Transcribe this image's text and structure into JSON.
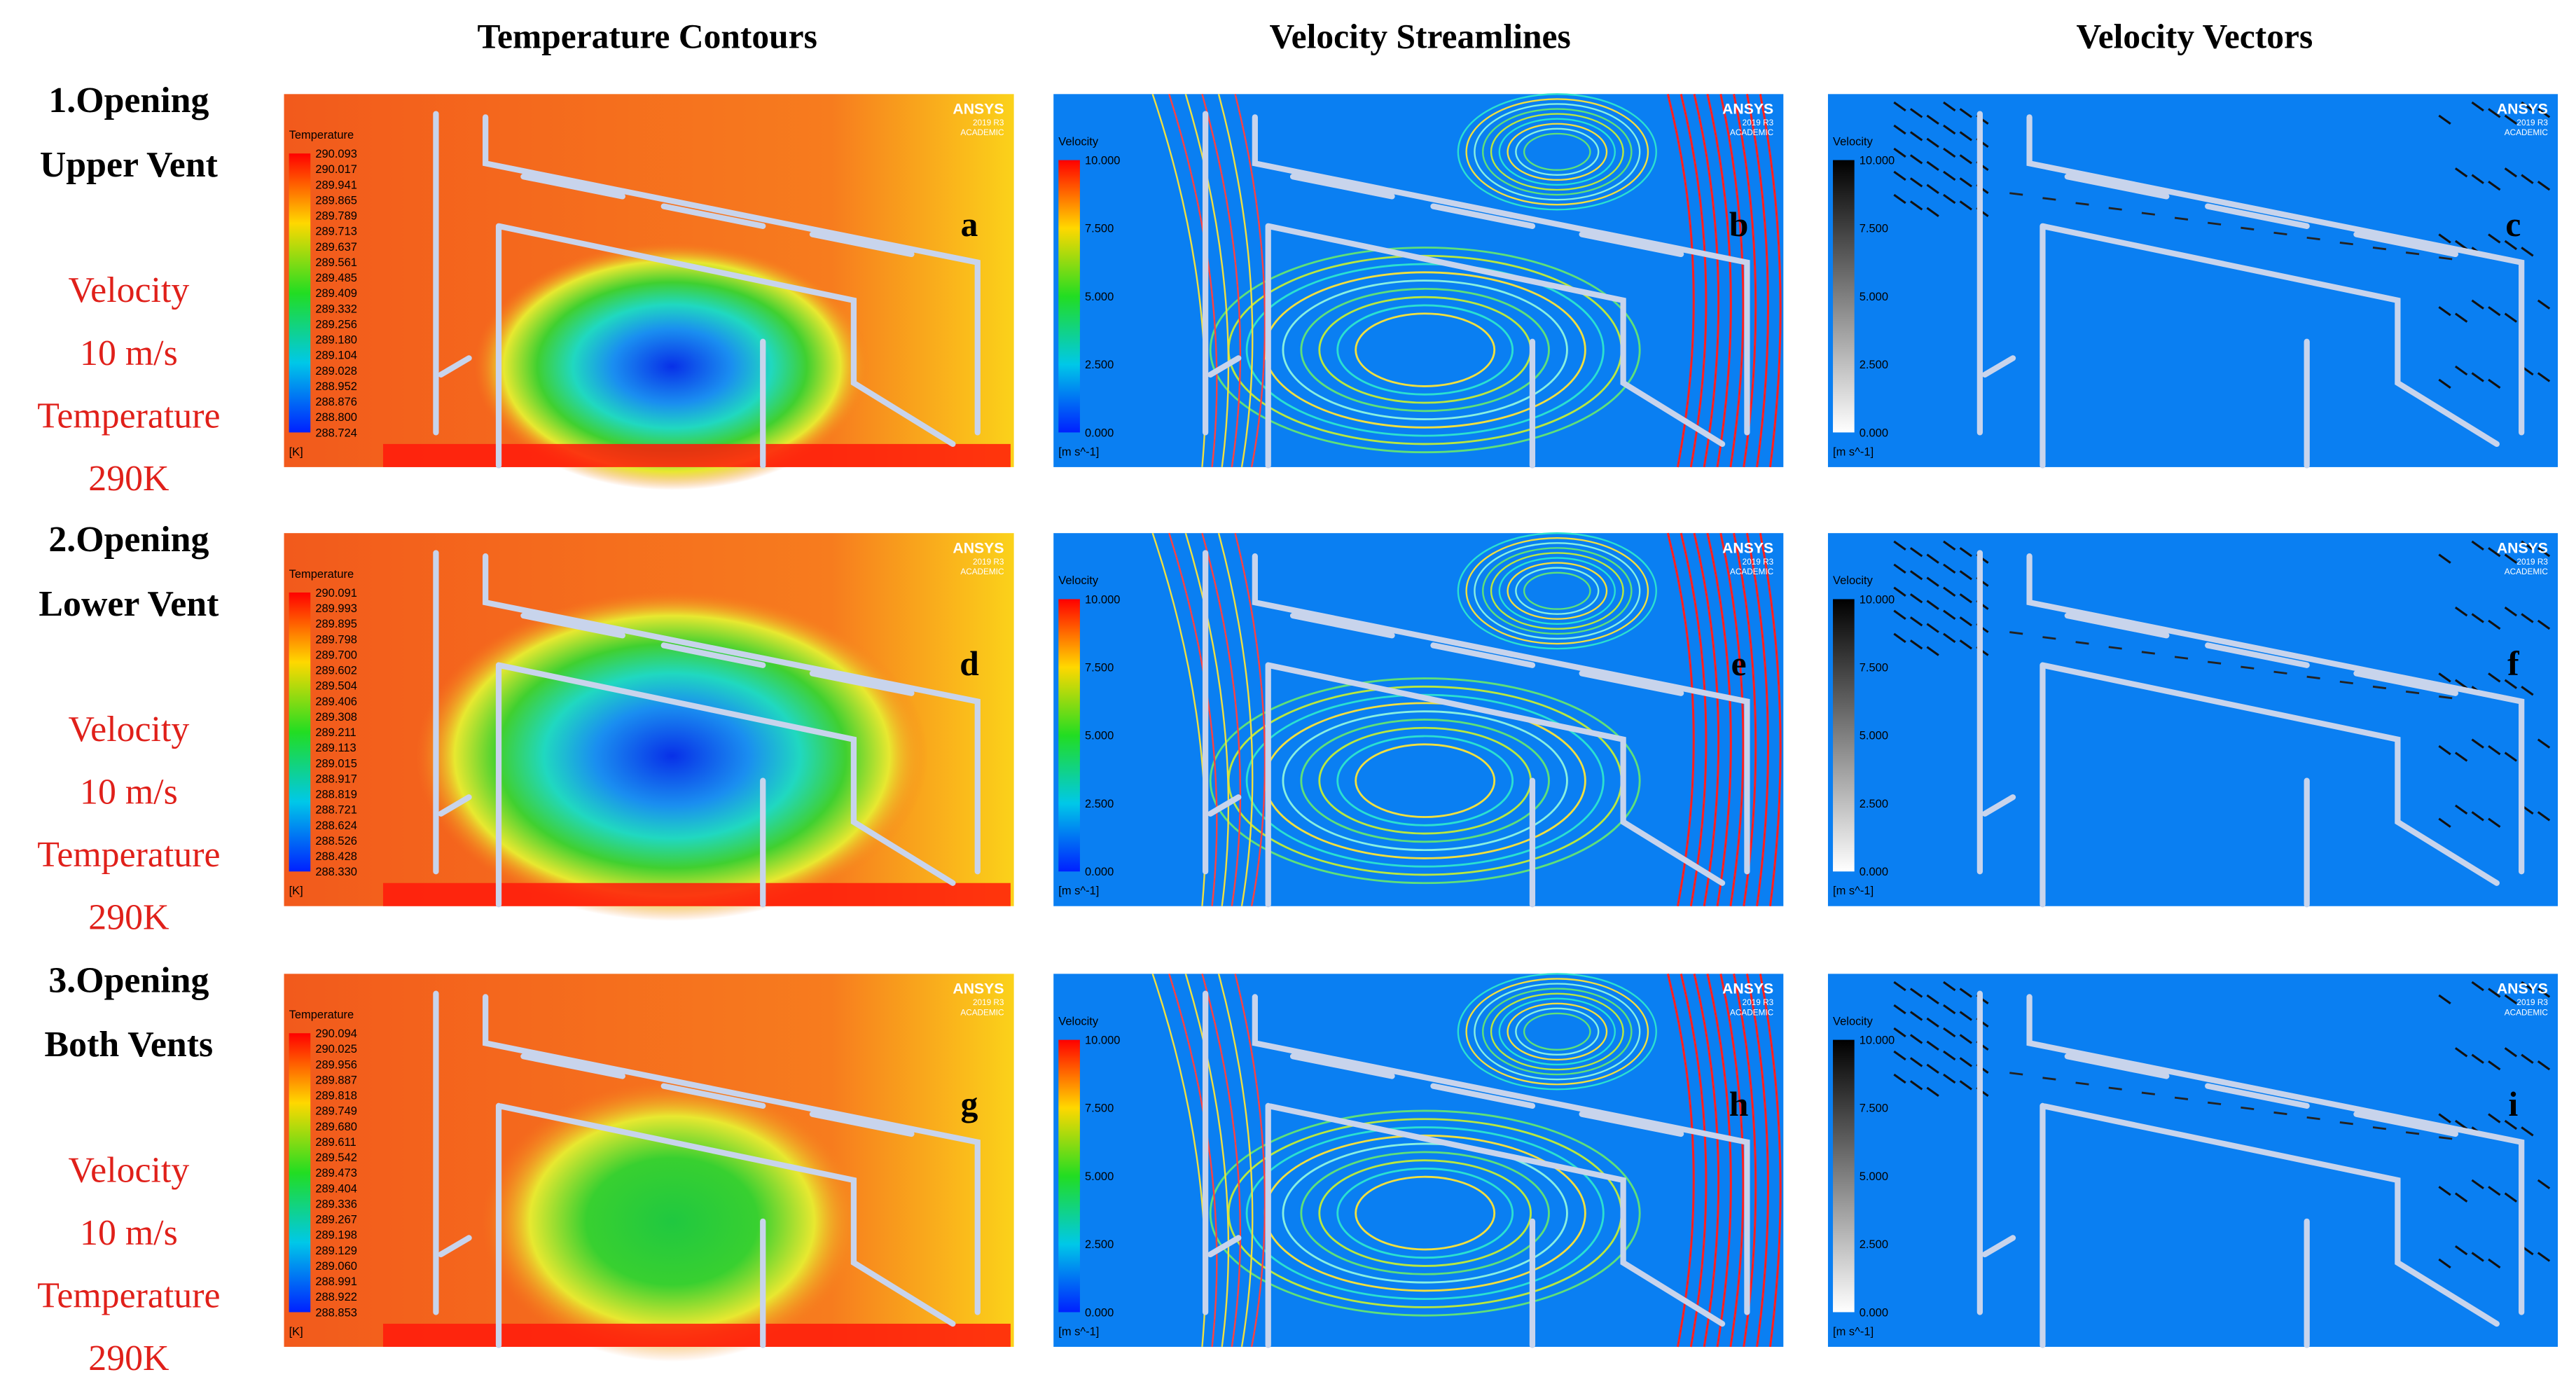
{
  "columns": [
    "Temperature Contours",
    "Velocity Streamlines",
    "Velocity Vectors"
  ],
  "branding": {
    "name": "ANSYS",
    "version": "2019 R3",
    "edition": "ACADEMIC"
  },
  "rows": [
    {
      "title_line1": "1.Opening",
      "title_line2": "Upper Vent",
      "velocity_label": "Velocity",
      "velocity_value": "10 m/s",
      "temperature_label": "Temperature",
      "temperature_value": "290K",
      "panels": [
        {
          "letter": "a",
          "legend_title": "Temperature",
          "legend_ticks": [
            "290.093",
            "290.017",
            "289.941",
            "289.865",
            "289.789",
            "289.713",
            "289.637",
            "289.561",
            "289.485",
            "289.409",
            "289.332",
            "289.256",
            "289.180",
            "289.104",
            "289.028",
            "288.952",
            "288.876",
            "288.800",
            "288.724"
          ],
          "unit": "[K]"
        },
        {
          "letter": "b",
          "legend_title": "Velocity",
          "legend_ticks": [
            "10.000",
            "7.500",
            "5.000",
            "2.500",
            "0.000"
          ],
          "unit": "[m s^-1]"
        },
        {
          "letter": "c",
          "legend_title": "Velocity",
          "legend_ticks": [
            "10.000",
            "7.500",
            "5.000",
            "2.500",
            "0.000"
          ],
          "unit": "[m s^-1]"
        }
      ]
    },
    {
      "title_line1": "2.Opening",
      "title_line2": "Lower Vent",
      "velocity_label": "Velocity",
      "velocity_value": "10 m/s",
      "temperature_label": "Temperature",
      "temperature_value": "290K",
      "panels": [
        {
          "letter": "d",
          "legend_title": "Temperature",
          "legend_ticks": [
            "290.091",
            "289.993",
            "289.895",
            "289.798",
            "289.700",
            "289.602",
            "289.504",
            "289.406",
            "289.308",
            "289.211",
            "289.113",
            "289.015",
            "288.917",
            "288.819",
            "288.721",
            "288.624",
            "288.526",
            "288.428",
            "288.330"
          ],
          "unit": "[K]"
        },
        {
          "letter": "e",
          "legend_title": "Velocity",
          "legend_ticks": [
            "10.000",
            "7.500",
            "5.000",
            "2.500",
            "0.000"
          ],
          "unit": "[m s^-1]"
        },
        {
          "letter": "f",
          "legend_title": "Velocity",
          "legend_ticks": [
            "10.000",
            "7.500",
            "5.000",
            "2.500",
            "0.000"
          ],
          "unit": "[m s^-1]"
        }
      ]
    },
    {
      "title_line1": "3.Opening",
      "title_line2": "Both Vents",
      "velocity_label": "Velocity",
      "velocity_value": "10 m/s",
      "temperature_label": "Temperature",
      "temperature_value": "290K",
      "panels": [
        {
          "letter": "g",
          "legend_title": "Temperature",
          "legend_ticks": [
            "290.094",
            "290.025",
            "289.956",
            "289.887",
            "289.818",
            "289.749",
            "289.680",
            "289.611",
            "289.542",
            "289.473",
            "289.404",
            "289.336",
            "289.267",
            "289.198",
            "289.129",
            "289.060",
            "288.991",
            "288.922",
            "288.853"
          ],
          "unit": "[K]"
        },
        {
          "letter": "h",
          "legend_title": "Velocity",
          "legend_ticks": [
            "10.000",
            "7.500",
            "5.000",
            "2.500",
            "0.000"
          ],
          "unit": "[m s^-1]"
        },
        {
          "letter": "i",
          "legend_title": "Velocity",
          "legend_ticks": [
            "10.000",
            "7.500",
            "5.000",
            "2.500",
            "0.000"
          ],
          "unit": "[m s^-1]"
        }
      ]
    }
  ]
}
